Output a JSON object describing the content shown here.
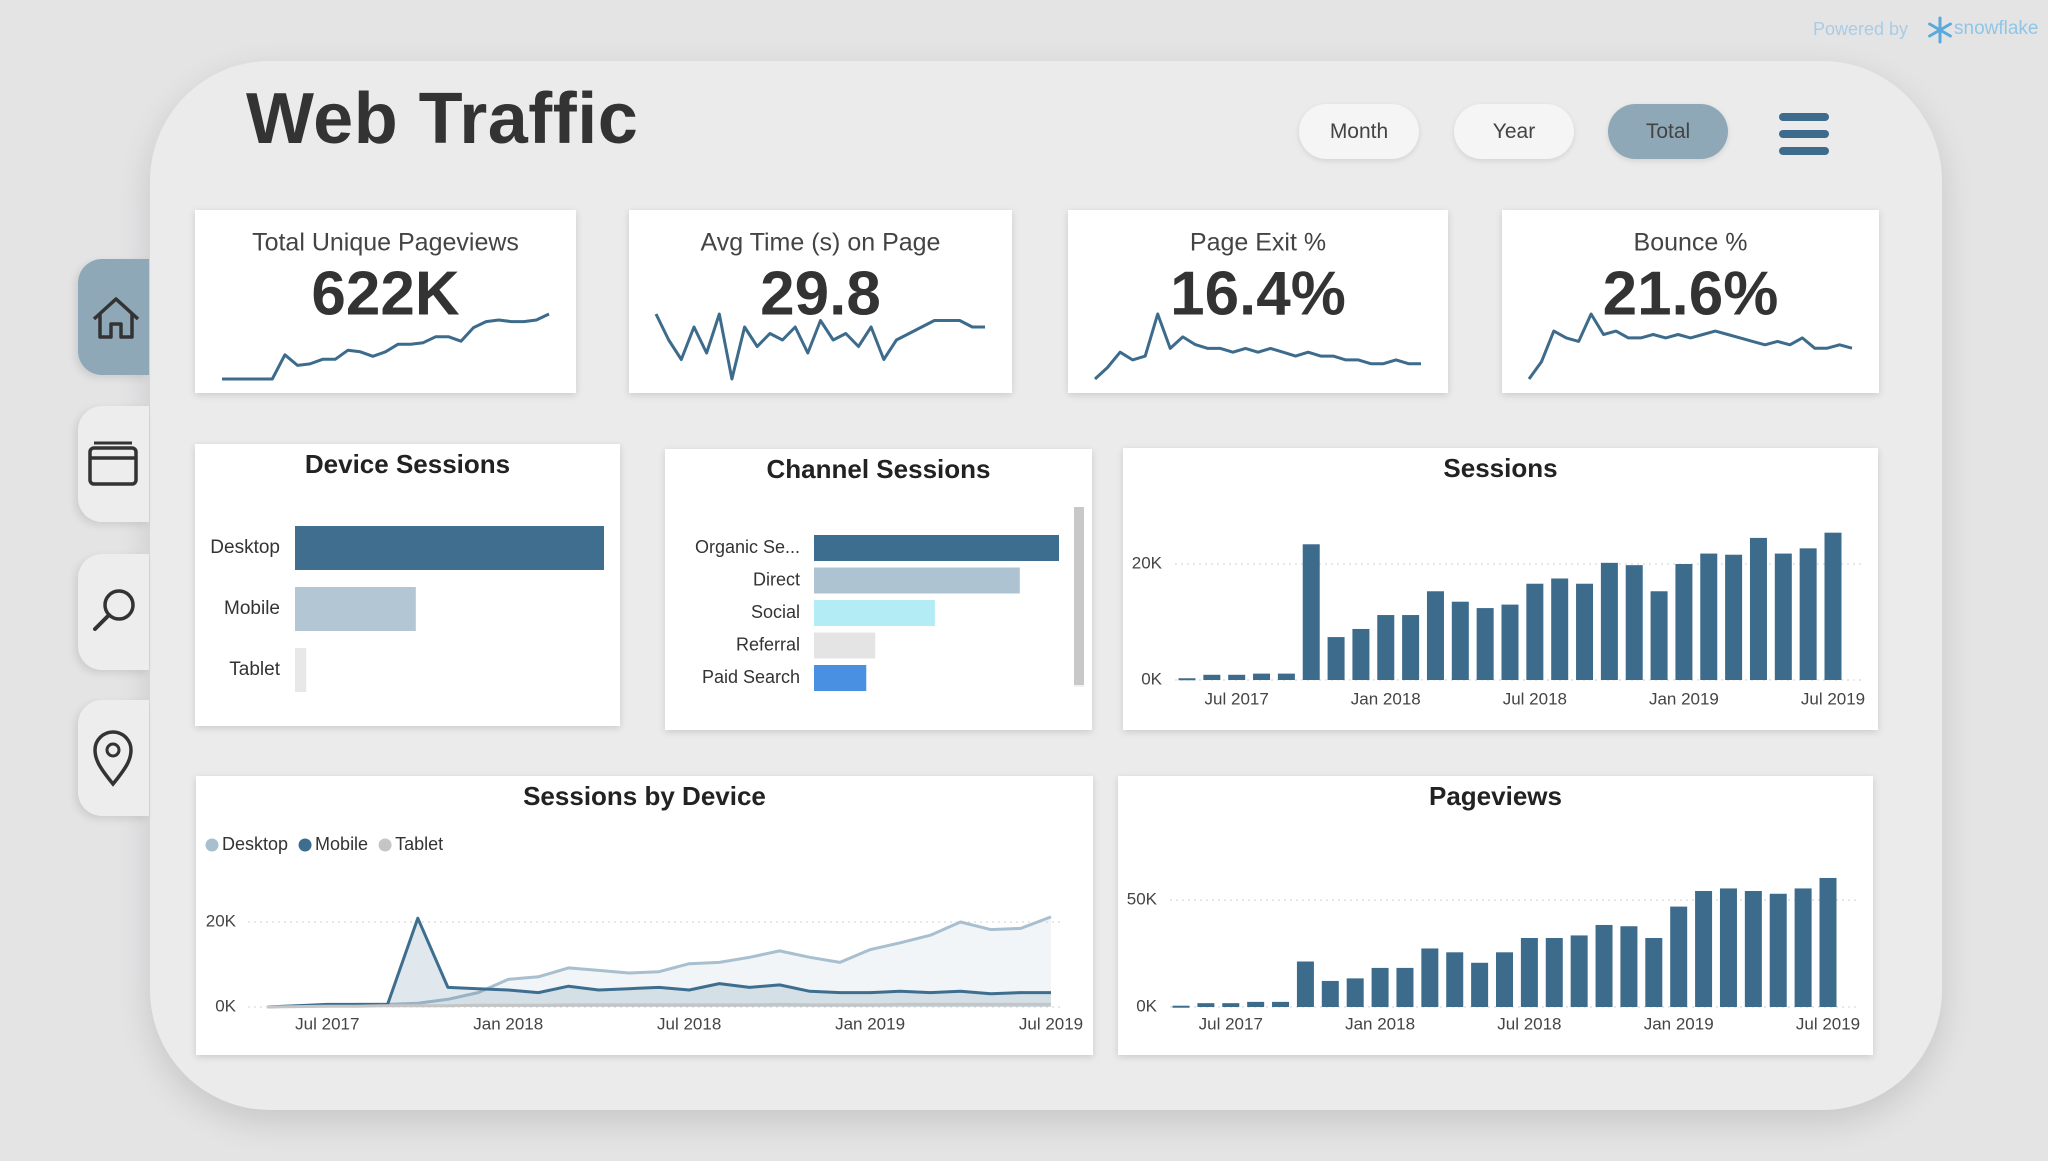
{
  "header": {
    "title": "Web Traffic",
    "powered_by": "Powered by",
    "brand": "snowflake"
  },
  "filters": {
    "options": [
      "Month",
      "Year",
      "Total"
    ],
    "selected": 2
  },
  "nav": {
    "selected": 0
  },
  "kpis": [
    {
      "title": "Total Unique Pageviews",
      "value": "622K",
      "color": "#3d6b8c",
      "sparkline": [
        2,
        2,
        2,
        2,
        2,
        18,
        11,
        12,
        15,
        15,
        21,
        20,
        17,
        20,
        25,
        25,
        26,
        30,
        30,
        27,
        36,
        40,
        41,
        40,
        40,
        41,
        45
      ]
    },
    {
      "title": "Avg Time (s) on Page",
      "value": "29.8",
      "color": "#3d6b8c",
      "sparkline": [
        31,
        27,
        24,
        29,
        25,
        31,
        21,
        29,
        26,
        28,
        27,
        29,
        25,
        30,
        27,
        28,
        26,
        29,
        24,
        27,
        28,
        29,
        30,
        30,
        30,
        29,
        29
      ]
    },
    {
      "title": "Page Exit %",
      "value": "16.4%",
      "color": "#3d6b8c",
      "sparkline": [
        8,
        11,
        15,
        13,
        14,
        25,
        16,
        19,
        17,
        16,
        16,
        15,
        16,
        15,
        16,
        15,
        14,
        15,
        14,
        14,
        13,
        13,
        12,
        12,
        13,
        12,
        12
      ]
    },
    {
      "title": "Bounce %",
      "value": "21.6%",
      "color": "#3d6b8c",
      "sparkline": [
        6,
        11,
        20,
        18,
        17,
        25,
        19,
        20,
        18,
        18,
        19,
        18,
        19,
        18,
        19,
        20,
        19,
        18,
        17,
        16,
        17,
        16,
        18,
        15,
        15,
        16,
        15
      ]
    }
  ],
  "chart_data": [
    {
      "type": "hbar",
      "title": "Device Sessions",
      "categories": [
        "Desktop",
        "Mobile",
        "Tablet"
      ],
      "values": [
        220000,
        86000,
        8000
      ],
      "colors": [
        "#3f6e8e",
        "#b2c6d3",
        "#e8e8e8"
      ]
    },
    {
      "type": "hbar",
      "title": "Channel Sessions",
      "categories": [
        "Organic Se...",
        "Direct",
        "Social",
        "Referral",
        "Paid Search"
      ],
      "values": [
        150000,
        126000,
        74000,
        37500,
        32000
      ],
      "colors": [
        "#3d6e8f",
        "#adc3d1",
        "#b3ecf5",
        "#e4e4e4",
        "#4a90e2"
      ]
    },
    {
      "type": "bar",
      "title": "Sessions",
      "color": "#3d6b8c",
      "grid": true,
      "categories": [
        null,
        null,
        "Jul 2017",
        null,
        null,
        null,
        null,
        null,
        "Jan 2018",
        null,
        null,
        null,
        null,
        null,
        "Jul 2018",
        null,
        null,
        null,
        null,
        null,
        "Jan 2019",
        null,
        null,
        null,
        null,
        null,
        "Jul 2019"
      ],
      "values": [
        300,
        900,
        900,
        1100,
        1100,
        23400,
        7400,
        8800,
        11200,
        11200,
        15300,
        13500,
        12400,
        13000,
        16600,
        17500,
        16600,
        20200,
        19800,
        15300,
        20000,
        21800,
        21600,
        24500,
        21800,
        22700,
        25400
      ],
      "ylim": [
        0,
        27000
      ],
      "yticks": [
        {
          "value": 0,
          "label": "0K"
        },
        {
          "value": 20000,
          "label": "20K"
        }
      ]
    },
    {
      "type": "line",
      "title": "Sessions by Device",
      "grid": true,
      "categories": [
        null,
        null,
        "Jul 2017",
        null,
        null,
        null,
        null,
        null,
        "Jan 2018",
        null,
        null,
        null,
        null,
        null,
        "Jul 2018",
        null,
        null,
        null,
        null,
        null,
        "Jan 2019",
        null,
        null,
        null,
        null,
        null,
        "Jul 2019"
      ],
      "series": [
        {
          "name": "Desktop",
          "color": "#a7bfcf",
          "values": [
            0,
            300,
            300,
            600,
            600,
            900,
            1800,
            3400,
            6500,
            7100,
            9200,
            8600,
            8000,
            8300,
            10200,
            10500,
            11700,
            13200,
            11700,
            10500,
            13500,
            15100,
            16900,
            20000,
            18200,
            18500,
            21200
          ]
        },
        {
          "name": "Mobile",
          "color": "#3d6e8f",
          "values": [
            0,
            300,
            600,
            600,
            600,
            20900,
            4600,
            4300,
            4000,
            3400,
            4900,
            4000,
            4300,
            4600,
            4000,
            5500,
            4600,
            5200,
            3700,
            3400,
            3400,
            3700,
            3400,
            3700,
            3100,
            3400,
            3400
          ]
        },
        {
          "name": "Tablet",
          "color": "#c5c5c5",
          "values": [
            0,
            100,
            200,
            200,
            300,
            300,
            300,
            400,
            400,
            400,
            500,
            500,
            500,
            500,
            500,
            500,
            500,
            600,
            500,
            500,
            500,
            600,
            600,
            600,
            600,
            600,
            600
          ]
        }
      ],
      "ylim": [
        0,
        30000
      ],
      "yticks": [
        {
          "value": 0,
          "label": "0K"
        },
        {
          "value": 20000,
          "label": "20K"
        }
      ]
    },
    {
      "type": "bar",
      "title": "Pageviews",
      "color": "#3d6b8c",
      "grid": true,
      "categories": [
        null,
        null,
        "Jul 2017",
        null,
        null,
        null,
        null,
        null,
        "Jan 2018",
        null,
        null,
        null,
        null,
        null,
        "Jul 2018",
        null,
        null,
        null,
        null,
        null,
        "Jan 2019",
        null,
        null,
        null,
        null,
        null,
        "Jul 2019"
      ],
      "values": [
        600,
        1800,
        1800,
        2400,
        2400,
        21300,
        12200,
        13400,
        18300,
        18300,
        27400,
        25600,
        20700,
        25600,
        32300,
        32300,
        33500,
        38400,
        37800,
        32300,
        47000,
        54300,
        55500,
        54300,
        53000,
        55500,
        60400
      ],
      "ylim": [
        0,
        66000
      ],
      "yticks": [
        {
          "value": 0,
          "label": "0K"
        },
        {
          "value": 50000,
          "label": "50K"
        }
      ]
    }
  ]
}
